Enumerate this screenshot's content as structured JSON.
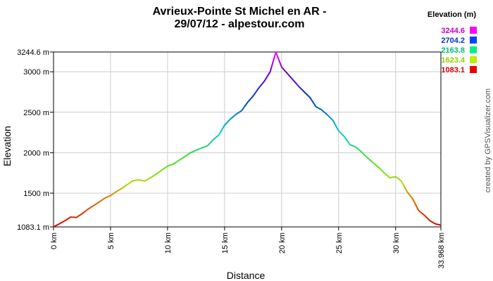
{
  "chart_data": {
    "type": "line",
    "title_line1": "Avrieux-Pointe St Michel en AR -",
    "title_line2": "29/07/12 - alpestour.com",
    "xlabel": "Distance",
    "ylabel": "Elevation",
    "xlim": [
      0,
      33.968
    ],
    "ylim": [
      1083.1,
      3244.6
    ],
    "x_ticks": [
      0,
      5,
      10,
      15,
      20,
      25,
      30,
      33.968
    ],
    "x_tick_labels": [
      "0 km",
      "5 km",
      "10 km",
      "15 km",
      "20 km",
      "25 km",
      "30 km",
      "33.968 km"
    ],
    "y_ticks": [
      1083.1,
      1500,
      2000,
      2500,
      3000,
      3244.6
    ],
    "y_tick_labels": [
      "1083.1 m",
      "1500 m",
      "2000 m",
      "2500 m",
      "3000 m",
      "3244.6 m"
    ],
    "grid": true,
    "legend_placement": "top-right",
    "legend": {
      "title": "Elevation (m)",
      "entries": [
        {
          "label": "3244.6",
          "color": "#cc00cc",
          "swatch": "#ff00ff"
        },
        {
          "label": "2704.2",
          "color": "#0033cc",
          "swatch": "#0044ff"
        },
        {
          "label": "2163.8",
          "color": "#00bb77",
          "swatch": "#00ee88"
        },
        {
          "label": "1623.4",
          "color": "#99cc00",
          "swatch": "#bbee00"
        },
        {
          "label": "1083.1",
          "color": "#cc0000",
          "swatch": "#ee0000"
        }
      ]
    },
    "series": [
      {
        "x": [
          0,
          0.5,
          1,
          1.5,
          2,
          2.5,
          3,
          3.5,
          4,
          4.5,
          5,
          5.5,
          6,
          6.5,
          7,
          7.5,
          8,
          8.5,
          9,
          9.5,
          10,
          10.5,
          11,
          11.5,
          12,
          12.5,
          13,
          13.5,
          14,
          14.5,
          15,
          15.5,
          16,
          16.5,
          17,
          17.5,
          18,
          18.5,
          19,
          19.5,
          20,
          20.5,
          21,
          21.5,
          22,
          22.5,
          23,
          23.5,
          24,
          24.5,
          25,
          25.5,
          26,
          26.5,
          27,
          27.5,
          28,
          28.5,
          29,
          29.5,
          30,
          30.5,
          31,
          31.5,
          32,
          32.5,
          33,
          33.5,
          33.968
        ],
        "y": [
          1083,
          1120,
          1160,
          1205,
          1200,
          1245,
          1300,
          1345,
          1390,
          1440,
          1470,
          1520,
          1560,
          1610,
          1655,
          1665,
          1650,
          1690,
          1735,
          1785,
          1835,
          1860,
          1905,
          1950,
          2000,
          2030,
          2060,
          2085,
          2160,
          2220,
          2340,
          2415,
          2475,
          2520,
          2620,
          2700,
          2800,
          2885,
          3000,
          3244,
          3060,
          2980,
          2900,
          2820,
          2750,
          2680,
          2570,
          2530,
          2470,
          2400,
          2270,
          2200,
          2100,
          2070,
          2010,
          1940,
          1880,
          1820,
          1750,
          1690,
          1705,
          1650,
          1520,
          1430,
          1290,
          1230,
          1160,
          1120,
          1105
        ]
      }
    ]
  },
  "credit": "created by GPSVisualizer.com"
}
